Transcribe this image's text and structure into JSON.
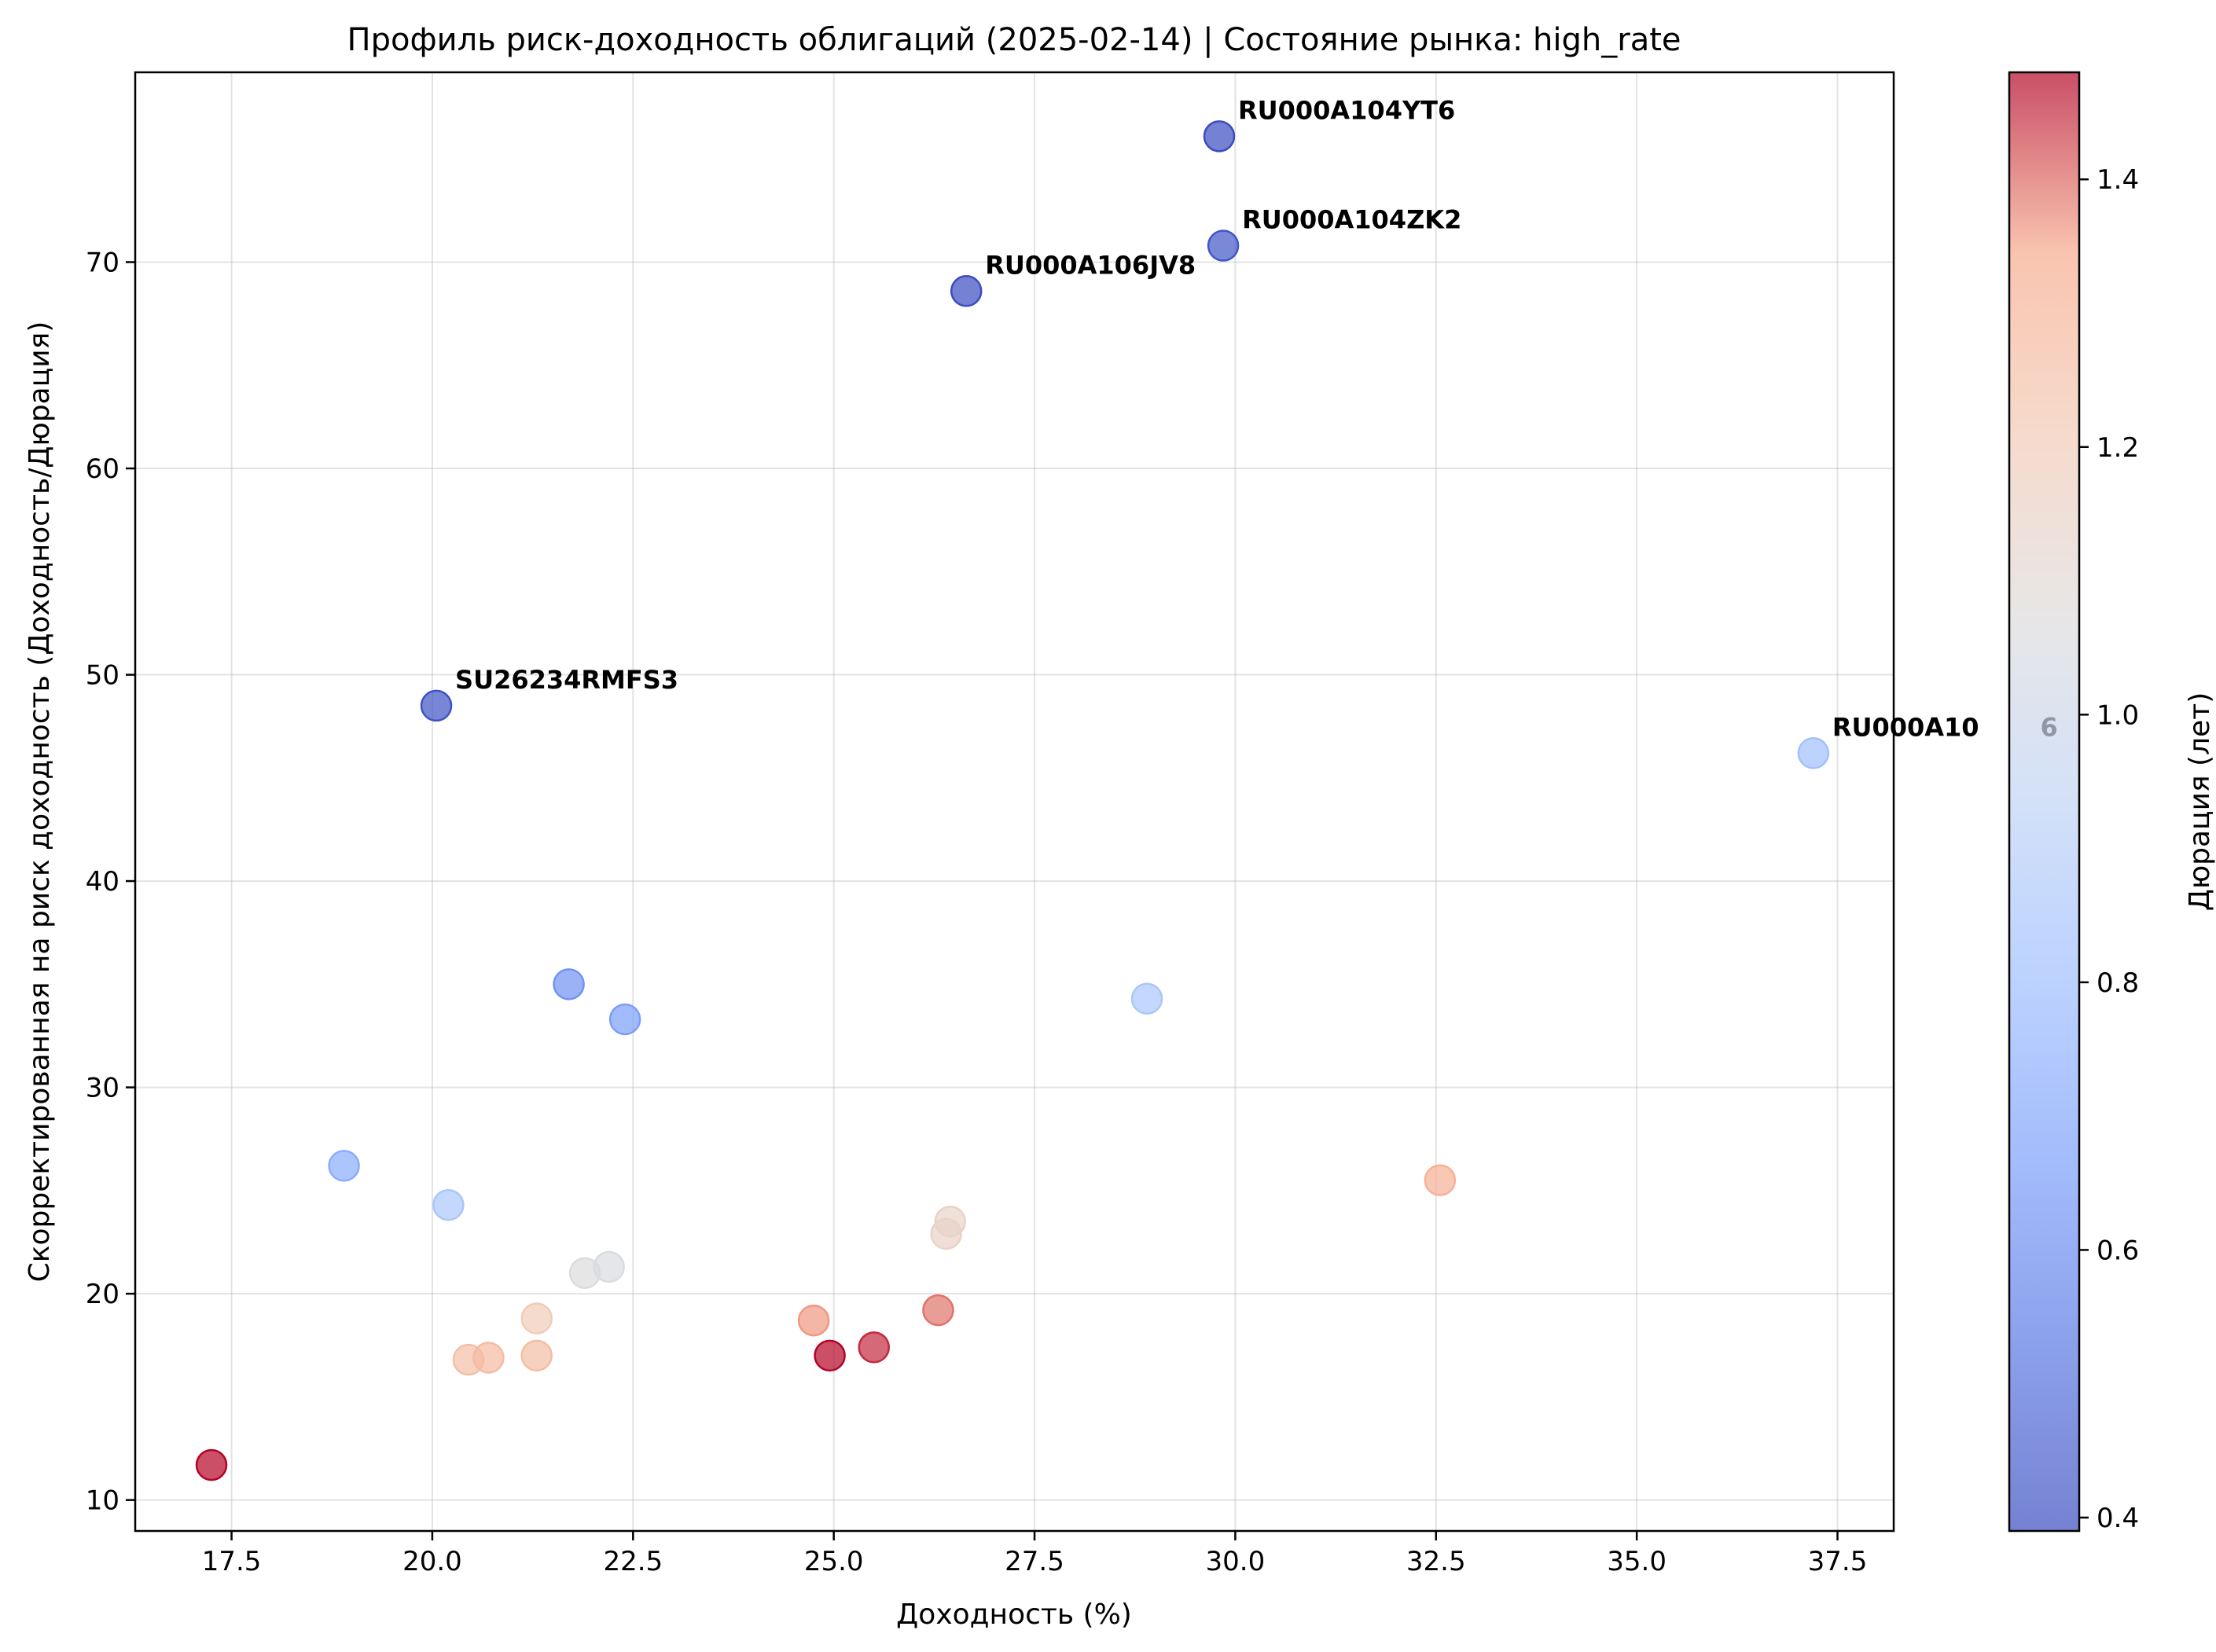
{
  "chart_data": {
    "type": "scatter",
    "title": "Профиль риск-доходность облигаций (2025-02-14) | Состояние рынка: high_rate",
    "xlabel": "Доходность (%)",
    "ylabel": "Скорректированная на риск доходность (Доходность/Дюрация)",
    "xlim": [
      16.3,
      38.2
    ],
    "ylim": [
      8.5,
      79.2
    ],
    "xticks": [
      "17.5",
      "20.0",
      "22.5",
      "25.0",
      "27.5",
      "30.0",
      "32.5",
      "35.0",
      "37.5"
    ],
    "yticks": [
      "10",
      "20",
      "30",
      "40",
      "50",
      "60",
      "70"
    ],
    "grid": true,
    "colormap": "coolwarm",
    "marker_alpha": 0.7,
    "colorbar": {
      "label": "Дюрация (лет)",
      "range": [
        0.39,
        1.48
      ],
      "ticks": [
        "0.4",
        "0.6",
        "0.8",
        "1.0",
        "1.2",
        "1.4"
      ]
    },
    "points": [
      {
        "x": 29.8,
        "y": 76.1,
        "duration": 0.39,
        "label": "RU000A104YT6"
      },
      {
        "x": 29.85,
        "y": 70.8,
        "duration": 0.42,
        "label": "RU000A104ZK2"
      },
      {
        "x": 26.65,
        "y": 68.6,
        "duration": 0.39,
        "label": "RU000A106JV8"
      },
      {
        "x": 20.05,
        "y": 48.5,
        "duration": 0.41,
        "label": "SU26234RMFS3"
      },
      {
        "x": 37.2,
        "y": 46.2,
        "duration": 0.81,
        "label": "RU000A10       6"
      },
      {
        "x": 21.7,
        "y": 35.0,
        "duration": 0.62
      },
      {
        "x": 22.4,
        "y": 33.3,
        "duration": 0.66
      },
      {
        "x": 28.9,
        "y": 34.3,
        "duration": 0.85
      },
      {
        "x": 18.9,
        "y": 26.2,
        "duration": 0.72
      },
      {
        "x": 20.2,
        "y": 24.3,
        "duration": 0.85
      },
      {
        "x": 32.55,
        "y": 25.5,
        "duration": 1.32
      },
      {
        "x": 26.45,
        "y": 23.5,
        "duration": 1.14
      },
      {
        "x": 26.4,
        "y": 22.9,
        "duration": 1.15
      },
      {
        "x": 21.9,
        "y": 21.0,
        "duration": 1.07
      },
      {
        "x": 22.2,
        "y": 21.3,
        "duration": 1.05
      },
      {
        "x": 21.3,
        "y": 18.8,
        "duration": 1.2
      },
      {
        "x": 24.75,
        "y": 18.7,
        "duration": 1.36
      },
      {
        "x": 26.3,
        "y": 19.2,
        "duration": 1.39
      },
      {
        "x": 20.45,
        "y": 16.8,
        "duration": 1.26
      },
      {
        "x": 20.7,
        "y": 16.9,
        "duration": 1.28
      },
      {
        "x": 21.3,
        "y": 17.0,
        "duration": 1.27
      },
      {
        "x": 24.95,
        "y": 17.0,
        "duration": 1.48
      },
      {
        "x": 25.5,
        "y": 17.4,
        "duration": 1.45
      },
      {
        "x": 17.25,
        "y": 11.7,
        "duration": 1.48
      }
    ]
  }
}
